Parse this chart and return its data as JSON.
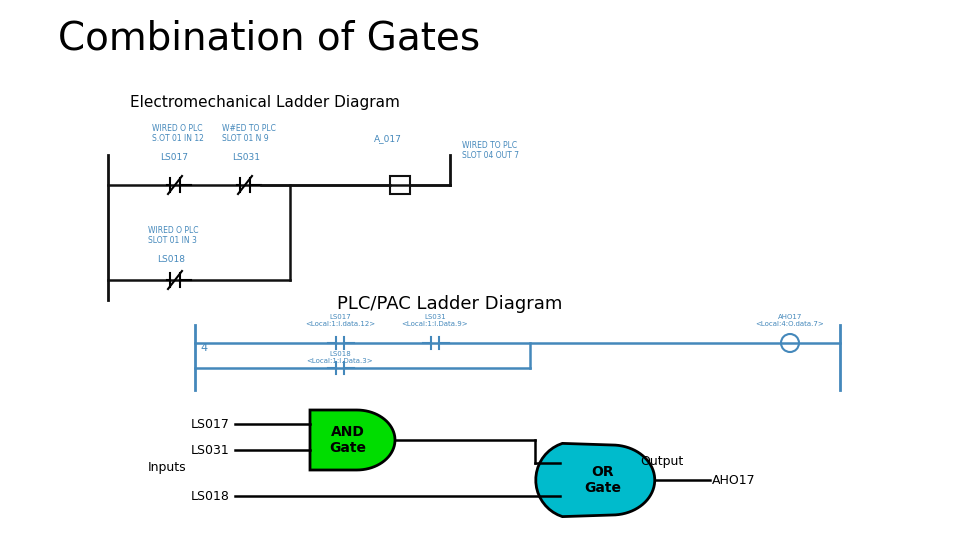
{
  "title": "Combination of Gates",
  "subtitle1": "Electromechanical Ladder Diagram",
  "subtitle2": "PLC/PAC Ladder Diagram",
  "bg_color": "#ffffff",
  "title_fontsize": 28,
  "subtitle_fontsize": 11,
  "and_gate_color": "#00dd00",
  "or_gate_color": "#00bbcc",
  "gate_text_color": "#000000",
  "label_color": "#000000",
  "diagram_blue": "#4488bb",
  "ls017_label": "LS017",
  "ls031_label": "LS031",
  "ls018_label": "LS018",
  "inputs_label": "Inputs",
  "output_label": "Output",
  "aho17_label": "AHO17",
  "and_label": "AND\nGate",
  "or_label": "OR\nGate"
}
